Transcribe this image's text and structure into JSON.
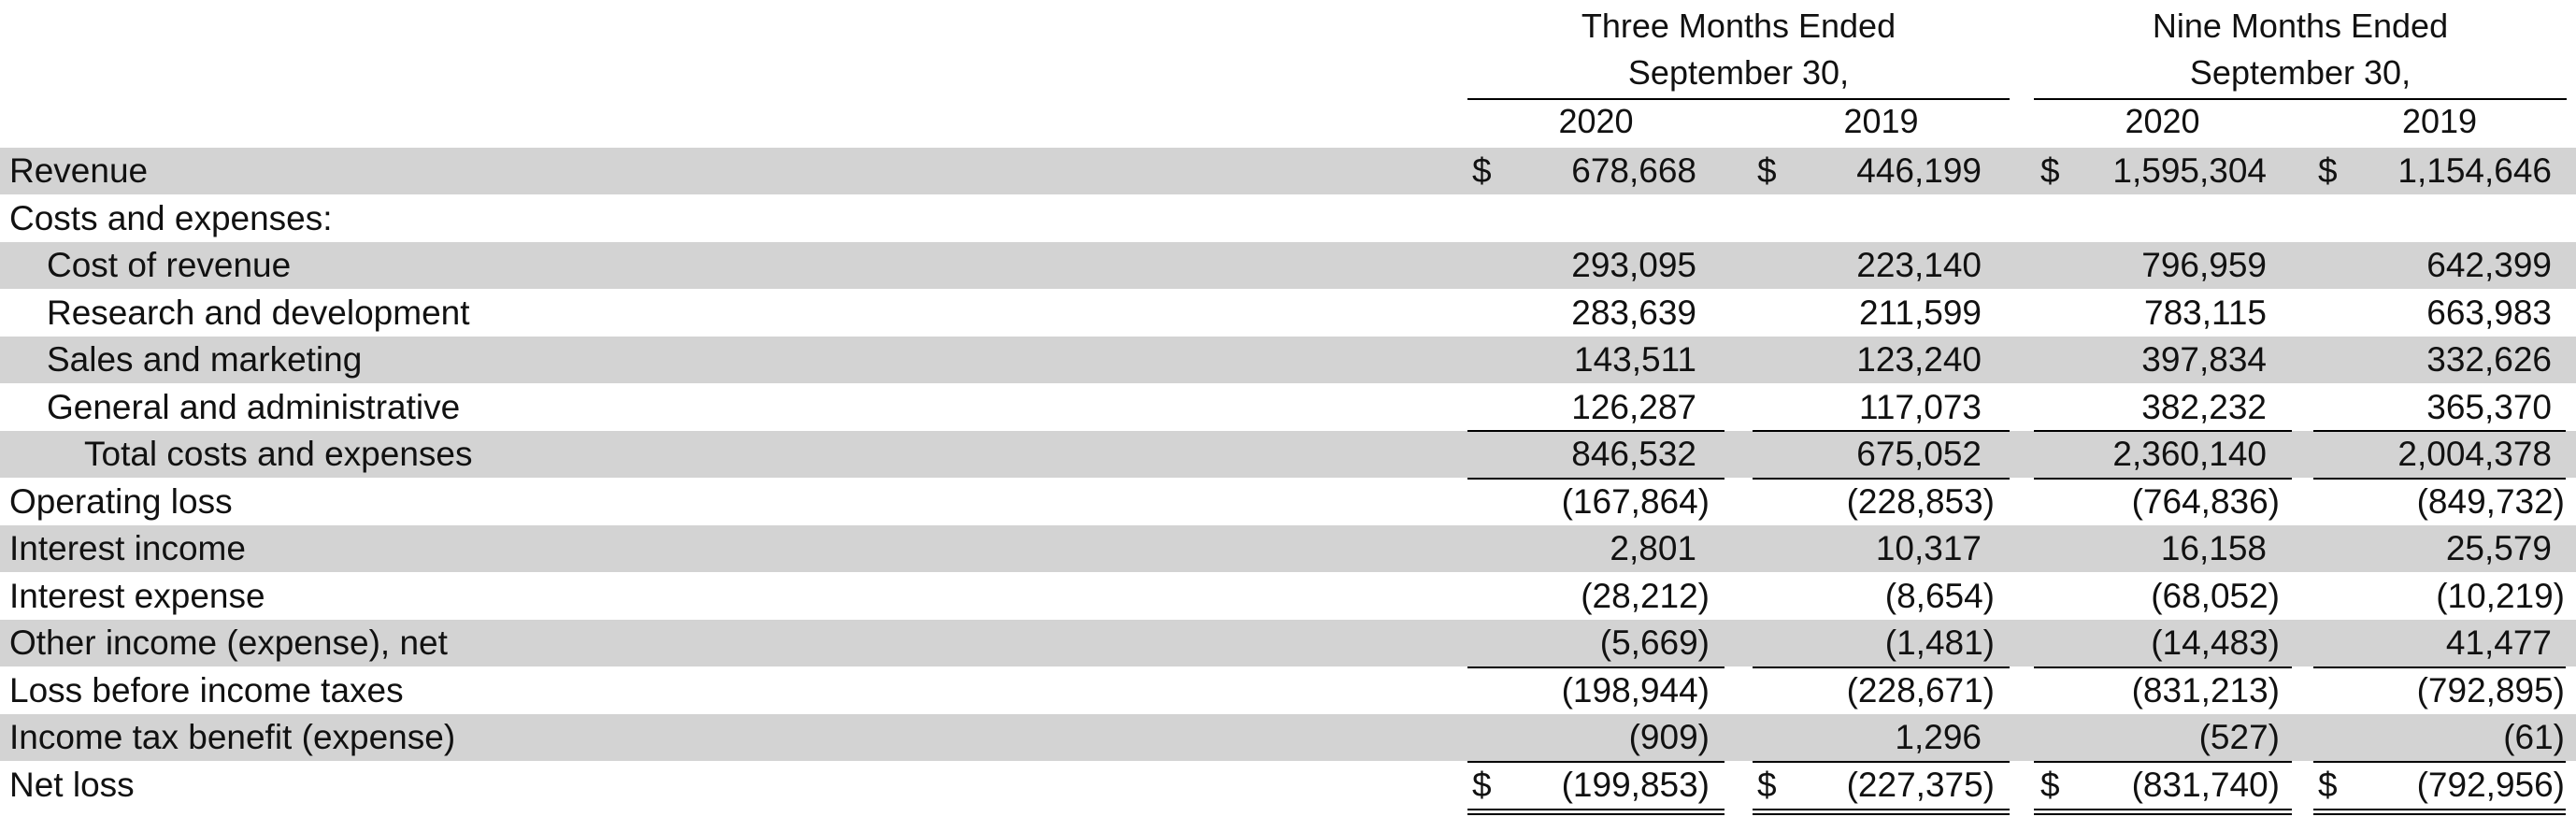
{
  "header": {
    "group_three": {
      "line1": "Three Months Ended",
      "line2": "September 30,"
    },
    "group_nine": {
      "line1": "Nine Months Ended",
      "line2": "September 30,"
    },
    "years": [
      "2020",
      "2019",
      "2020",
      "2019"
    ]
  },
  "rows": [
    {
      "label": "Revenue",
      "dollar": true,
      "values": [
        "678,668",
        "446,199",
        "1,595,304",
        "1,154,646"
      ]
    },
    {
      "label": "Costs and expenses:",
      "values": [
        "",
        "",
        "",
        ""
      ]
    },
    {
      "label": "Cost of revenue",
      "values": [
        "293,095",
        "223,140",
        "796,959",
        "642,399"
      ]
    },
    {
      "label": "Research and development",
      "values": [
        "283,639",
        "211,599",
        "783,115",
        "663,983"
      ]
    },
    {
      "label": "Sales and marketing",
      "values": [
        "143,511",
        "123,240",
        "397,834",
        "332,626"
      ]
    },
    {
      "label": "General and administrative",
      "values": [
        "126,287",
        "117,073",
        "382,232",
        "365,370"
      ]
    },
    {
      "label": "Total costs and expenses",
      "values": [
        "846,532",
        "675,052",
        "2,360,140",
        "2,004,378"
      ]
    },
    {
      "label": "Operating loss",
      "values": [
        "(167,864)",
        "(228,853)",
        "(764,836)",
        "(849,732)"
      ]
    },
    {
      "label": "Interest income",
      "values": [
        "2,801",
        "10,317",
        "16,158",
        "25,579"
      ]
    },
    {
      "label": "Interest expense",
      "values": [
        "(28,212)",
        "(8,654)",
        "(68,052)",
        "(10,219)"
      ]
    },
    {
      "label": "Other income (expense), net",
      "values": [
        "(5,669)",
        "(1,481)",
        "(14,483)",
        "41,477"
      ]
    },
    {
      "label": "Loss before income taxes",
      "values": [
        "(198,944)",
        "(228,671)",
        "(831,213)",
        "(792,895)"
      ]
    },
    {
      "label": "Income tax benefit (expense)",
      "values": [
        "(909)",
        "1,296",
        "(527)",
        "(61)"
      ]
    },
    {
      "label": "Net loss",
      "dollar": true,
      "values": [
        "(199,853)",
        "(227,375)",
        "(831,740)",
        "(792,956)"
      ]
    }
  ],
  "currency_symbol": "$",
  "colors": {
    "shade": "#d3d3d3",
    "text": "#111111",
    "rule": "#000000"
  }
}
